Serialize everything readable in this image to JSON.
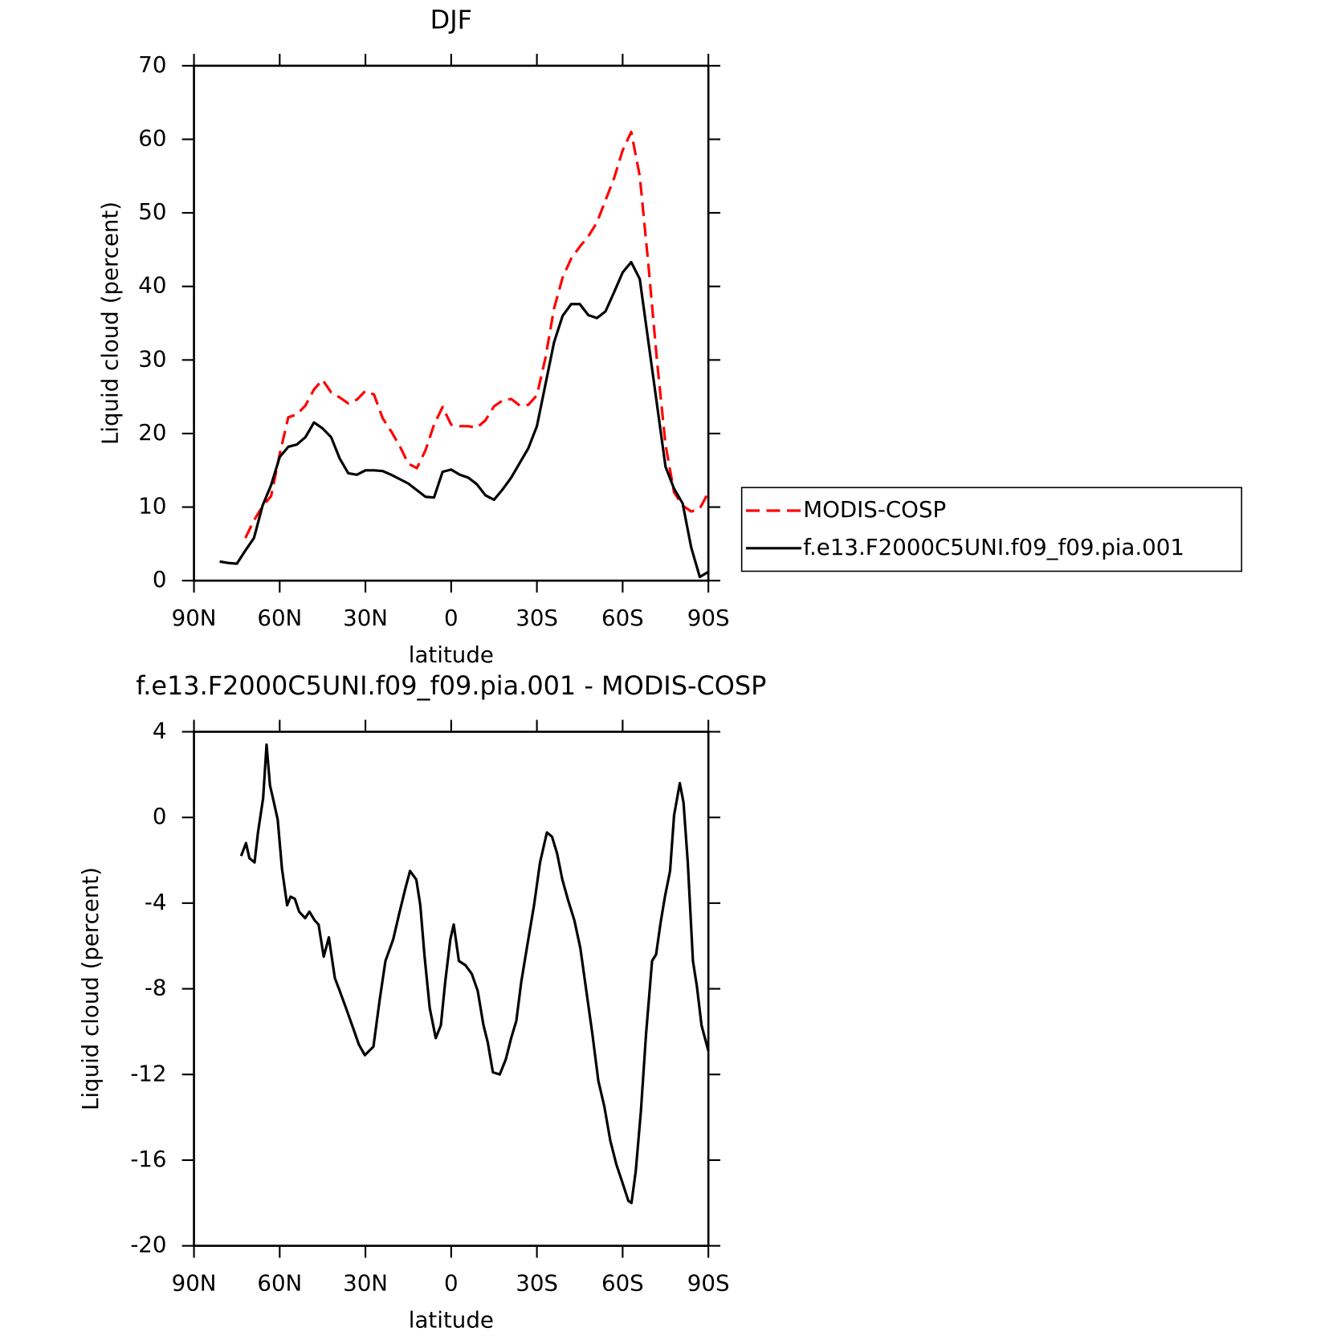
{
  "chart_data": [
    {
      "type": "line",
      "title": "DJF",
      "xlabel": "latitude",
      "ylabel": "Liquid cloud (percent)",
      "x": [
        81,
        78,
        75,
        72,
        69,
        66,
        63,
        60,
        57,
        54,
        51,
        48,
        45,
        42,
        39,
        36,
        33,
        30,
        27,
        24,
        21,
        18,
        15,
        12,
        9,
        6,
        3,
        0,
        -3,
        -6,
        -9,
        -12,
        -15,
        -18,
        -21,
        -24,
        -27,
        -30,
        -33,
        -36,
        -39,
        -42,
        -45,
        -48,
        -51,
        -54,
        -57,
        -60,
        -63,
        -66,
        -69,
        -72,
        -75,
        -78,
        -81,
        -84,
        -87,
        -90
      ],
      "series": [
        {
          "name": "MODIS-COSP",
          "color": "#ff0000",
          "dashed": true,
          "values": [
            null,
            null,
            null,
            5.8,
            8.2,
            10.1,
            11.5,
            17.2,
            22.2,
            22.6,
            23.8,
            26.0,
            27.3,
            25.6,
            24.9,
            24.1,
            24.6,
            25.8,
            25.3,
            22.1,
            20.3,
            18.3,
            15.9,
            15.3,
            17.7,
            21.2,
            23.6,
            21.2,
            21.0,
            21.0,
            20.8,
            21.8,
            23.7,
            24.5,
            24.7,
            23.8,
            23.9,
            25.2,
            30.3,
            37.0,
            41.2,
            43.8,
            45.4,
            46.8,
            48.7,
            51.7,
            54.7,
            58.5,
            61.0,
            55.0,
            43.0,
            30.0,
            18.5,
            12.0,
            10.2,
            9.4,
            9.8,
            12.0
          ]
        },
        {
          "name": "f.e13.F2000C5UNI.f09_f09.pia.001",
          "color": "#000000",
          "dashed": false,
          "values": [
            2.6,
            2.4,
            2.3,
            4.1,
            5.8,
            10.2,
            13.0,
            16.8,
            18.2,
            18.5,
            19.5,
            21.5,
            20.7,
            19.5,
            16.6,
            14.6,
            14.4,
            15.0,
            15.0,
            14.9,
            14.4,
            13.8,
            13.2,
            12.3,
            11.4,
            11.3,
            14.8,
            15.1,
            14.4,
            14.0,
            13.1,
            11.6,
            11.0,
            12.4,
            14.0,
            16.0,
            18.0,
            21.0,
            26.7,
            32.4,
            36.0,
            37.6,
            37.6,
            36.1,
            35.7,
            36.6,
            39.2,
            41.9,
            43.3,
            41.0,
            32.5,
            24.0,
            15.5,
            12.5,
            10.5,
            4.5,
            0.5,
            1.2
          ]
        }
      ],
      "xlim": [
        90,
        -90
      ],
      "xticks": [
        {
          "value": 90,
          "label": "90N"
        },
        {
          "value": 60,
          "label": "60N"
        },
        {
          "value": 30,
          "label": "30N"
        },
        0,
        {
          "value": -30,
          "label": "30S"
        },
        {
          "value": -60,
          "label": "60S"
        },
        {
          "value": -90,
          "label": "90S"
        }
      ],
      "ylim": [
        0,
        70
      ],
      "yticks": [
        0,
        10,
        20,
        30,
        40,
        50,
        60,
        70
      ],
      "grid": false,
      "legend": "right"
    },
    {
      "type": "line",
      "title": "f.e13.F2000C5UNI.f09_f09.pia.001 - MODIS-COSP",
      "xlabel": "latitude",
      "ylabel": "Liquid cloud (percent)",
      "x": [
        73.5,
        71.8,
        70.6,
        68.8,
        67.6,
        65.8,
        64.6,
        63.4,
        62.2,
        60.7,
        59.2,
        57.4,
        56.2,
        54.7,
        53.2,
        51.1,
        49.6,
        47.8,
        46.4,
        44.6,
        42.8,
        40.7,
        39,
        36.8,
        34.4,
        32.3,
        30.2,
        27.2,
        25,
        23,
        20.3,
        18.2,
        16,
        14.4,
        12.2,
        10.8,
        9.3,
        7.5,
        5.4,
        3.6,
        2.1,
        0.3,
        -0.9,
        -2.7,
        -5,
        -7.2,
        -9.3,
        -11.3,
        -12.8,
        -14.6,
        -17,
        -19.1,
        -21,
        -22.8,
        -24.5,
        -26.6,
        -29,
        -31.1,
        -33.5,
        -35.3,
        -37.1,
        -38.9,
        -41,
        -43.1,
        -45.2,
        -47.3,
        -49.4,
        -51.5,
        -53.6,
        -55.7,
        -57.8,
        -59.8,
        -62,
        -63.1,
        -64.6,
        -66.4,
        -68.2,
        -70.3,
        -71.7,
        -73.3,
        -74.8,
        -76.6,
        -78,
        -80,
        -81.3,
        -82.8,
        -84.6,
        -86,
        -87.6,
        -90
      ],
      "series": [
        {
          "color": "#000000",
          "dashed": false,
          "values": [
            -1.8,
            -1.2,
            -1.9,
            -2.1,
            -0.7,
            0.9,
            3.4,
            1.5,
            0.8,
            -0.1,
            -2.4,
            -4.1,
            -3.7,
            -3.8,
            -4.4,
            -4.7,
            -4.4,
            -4.8,
            -5.0,
            -6.5,
            -5.6,
            -7.5,
            -8.1,
            -8.9,
            -9.8,
            -10.6,
            -11.1,
            -10.7,
            -8.5,
            -6.7,
            -5.7,
            -4.5,
            -3.3,
            -2.5,
            -2.9,
            -4.1,
            -6.5,
            -8.9,
            -10.3,
            -9.7,
            -7.7,
            -5.7,
            -5.0,
            -6.7,
            -6.9,
            -7.3,
            -8.1,
            -9.7,
            -10.5,
            -11.9,
            -12.0,
            -11.3,
            -10.3,
            -9.5,
            -7.7,
            -6.0,
            -4.1,
            -2.1,
            -0.7,
            -0.9,
            -1.7,
            -2.9,
            -3.9,
            -4.8,
            -6.1,
            -8.1,
            -10.1,
            -12.3,
            -13.5,
            -15.1,
            -16.2,
            -17.0,
            -17.9,
            -18.0,
            -16.5,
            -13.7,
            -10.1,
            -6.7,
            -6.4,
            -4.9,
            -3.7,
            -2.5,
            0.1,
            1.6,
            0.7,
            -2.1,
            -6.7,
            -7.9,
            -9.7,
            -10.9
          ]
        }
      ],
      "xlim": [
        90,
        -90
      ],
      "xticks": [
        {
          "value": 90,
          "label": "90N"
        },
        {
          "value": 60,
          "label": "60N"
        },
        {
          "value": 30,
          "label": "30N"
        },
        0,
        {
          "value": -30,
          "label": "30S"
        },
        {
          "value": -60,
          "label": "60S"
        },
        {
          "value": -90,
          "label": "90S"
        }
      ],
      "ylim": [
        -20,
        4
      ],
      "yticks": [
        -20,
        -16,
        -12,
        -8,
        -4,
        0,
        4
      ],
      "grid": false
    }
  ]
}
